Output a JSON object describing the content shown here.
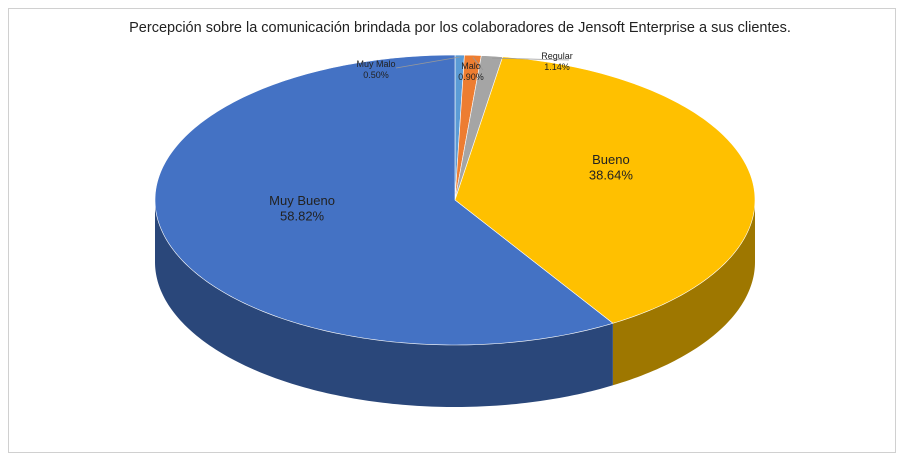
{
  "chart_data": {
    "type": "pie",
    "title": "Percepción sobre la comunicación brindada por los colaboradores de Jensoft Enterprise a sus clientes.",
    "categories": [
      "Muy Malo",
      "Malo",
      "Regular",
      "Bueno",
      "Muy Bueno"
    ],
    "values": [
      0.5,
      0.9,
      1.14,
      38.64,
      58.82
    ],
    "value_labels": [
      "0.50%",
      "0.90%",
      "1.14%",
      "38.64%",
      "58.82%"
    ],
    "colors": [
      "#5b9bd5",
      "#ed7d31",
      "#a5a5a5",
      "#ffc000",
      "#4472c4"
    ]
  }
}
